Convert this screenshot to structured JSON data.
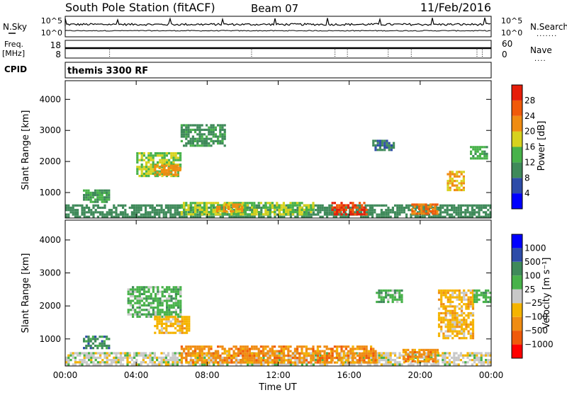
{
  "header": {
    "title": "South Pole Station (fitACF)",
    "beam": "Beam 07",
    "date": "11/Feb/2016"
  },
  "strip_labels": {
    "nsky": "N.Sky",
    "nsearch": "N.Search",
    "freq": "Freq.",
    "freq_unit": "[MHz]",
    "nave": "Nave",
    "cpid": "CPID",
    "cpid_value": "themis 3300 RF"
  },
  "strip_ticks": {
    "noise_top_left": "10^5",
    "noise_bottom_left": "10^0",
    "noise_top_right": "10^5",
    "noise_bottom_right": "10^0",
    "freq_top": "18",
    "freq_bottom": "8",
    "nave_top": "60",
    "nave_bottom": "0"
  },
  "colors": {
    "power_scale": [
      "#0000ff",
      "#2e4ca8",
      "#3f8a5a",
      "#48b24a",
      "#d7d21e",
      "#f08c12",
      "#f05a0a",
      "#e61e0a"
    ],
    "velocity_scale": [
      "#ff0000",
      "#f05a0a",
      "#f08c12",
      "#f5b400",
      "#c8c8c8",
      "#48b24a",
      "#3f8a5a",
      "#2e4ca8",
      "#0000ff"
    ]
  },
  "chart_data": [
    {
      "type": "heatmap",
      "name": "power",
      "ylabel": "Slant Range [km]",
      "ylim": [
        180,
        4600
      ],
      "yticks": [
        1000,
        2000,
        3000,
        4000
      ],
      "ytick_labels": [
        "1000",
        "2000",
        "3000",
        "4000"
      ],
      "colorbar_label": "Power [dB]",
      "colorbar_ticks": [
        "4",
        "8",
        "12",
        "16",
        "20",
        "24",
        "28"
      ],
      "colorbar_range": [
        0,
        32
      ],
      "regions": [
        {
          "t0": 0.0,
          "t1": 24.0,
          "r0": 200,
          "r1": 620,
          "v": 10
        },
        {
          "t0": 1.0,
          "t1": 2.5,
          "r0": 700,
          "r1": 1100,
          "v": 12
        },
        {
          "t0": 4.0,
          "t1": 6.5,
          "r0": 1500,
          "r1": 2300,
          "v": 16
        },
        {
          "t0": 5.0,
          "t1": 6.5,
          "r0": 1600,
          "r1": 1900,
          "v": 22
        },
        {
          "t0": 6.5,
          "t1": 9.0,
          "r0": 2500,
          "r1": 3200,
          "v": 11
        },
        {
          "t0": 6.5,
          "t1": 14.0,
          "r0": 300,
          "r1": 700,
          "v": 16
        },
        {
          "t0": 8.5,
          "t1": 10.0,
          "r0": 400,
          "r1": 650,
          "v": 21
        },
        {
          "t0": 15.0,
          "t1": 17.0,
          "r0": 300,
          "r1": 700,
          "v": 28
        },
        {
          "t0": 19.5,
          "t1": 21.0,
          "r0": 350,
          "r1": 650,
          "v": 24
        },
        {
          "t0": 17.3,
          "t1": 18.5,
          "r0": 2350,
          "r1": 2700,
          "v": 8
        },
        {
          "t0": 21.5,
          "t1": 22.5,
          "r0": 1100,
          "r1": 1700,
          "v": 20
        },
        {
          "t0": 22.8,
          "t1": 23.8,
          "r0": 2100,
          "r1": 2500,
          "v": 13
        }
      ]
    },
    {
      "type": "heatmap",
      "name": "velocity",
      "xlabel": "Time UT",
      "ylabel": "Slant Range [km]",
      "xlim": [
        0,
        24
      ],
      "xticks": [
        0,
        4,
        8,
        12,
        16,
        20,
        24
      ],
      "xtick_labels": [
        "00:00",
        "04:00",
        "08:00",
        "12:00",
        "16:00",
        "20:00",
        "00:00"
      ],
      "ylim": [
        180,
        4600
      ],
      "yticks": [
        1000,
        2000,
        3000,
        4000
      ],
      "ytick_labels": [
        "1000",
        "2000",
        "3000",
        "4000"
      ],
      "colorbar_label": "Velocity [m s⁻¹]",
      "colorbar_ticks": [
        "1000",
        "500",
        "100",
        "25",
        "−25",
        "−100",
        "−500",
        "−1000"
      ],
      "regions": [
        {
          "t0": 0.0,
          "t1": 24.0,
          "r0": 200,
          "r1": 600,
          "v": -25
        },
        {
          "t0": 1.0,
          "t1": 2.5,
          "r0": 700,
          "r1": 1100,
          "v": 100
        },
        {
          "t0": 3.5,
          "t1": 6.5,
          "r0": 1700,
          "r1": 2600,
          "v": 25
        },
        {
          "t0": 5.0,
          "t1": 7.0,
          "r0": 1200,
          "r1": 1700,
          "v": -100
        },
        {
          "t0": 6.5,
          "t1": 15.0,
          "r0": 300,
          "r1": 800,
          "v": -500
        },
        {
          "t0": 15.0,
          "t1": 17.5,
          "r0": 300,
          "r1": 800,
          "v": -500
        },
        {
          "t0": 17.5,
          "t1": 19.0,
          "r0": 2100,
          "r1": 2500,
          "v": 25
        },
        {
          "t0": 19.0,
          "t1": 21.0,
          "r0": 350,
          "r1": 700,
          "v": -500
        },
        {
          "t0": 21.0,
          "t1": 23.0,
          "r0": 1000,
          "r1": 2500,
          "v": -100
        },
        {
          "t0": 23.0,
          "t1": 24.0,
          "r0": 2100,
          "r1": 2500,
          "v": 25
        }
      ]
    }
  ]
}
